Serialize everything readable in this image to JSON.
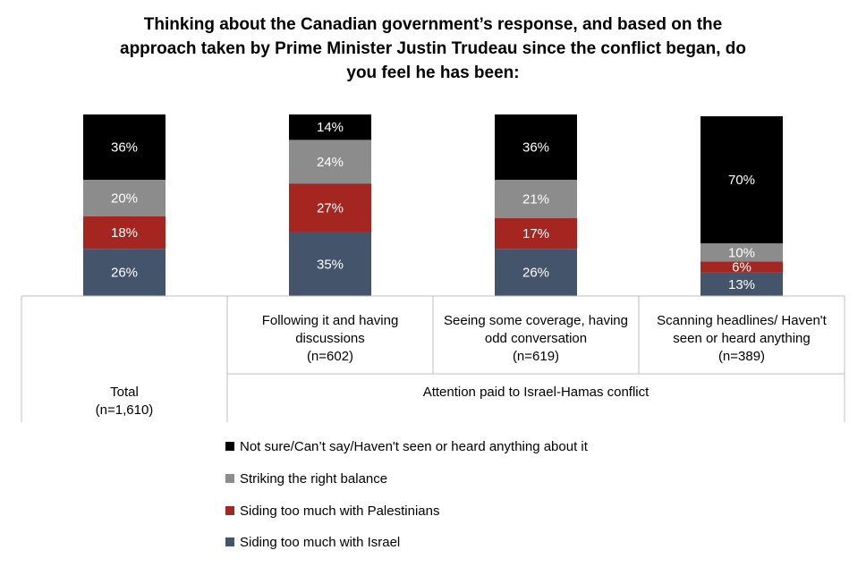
{
  "chart_data": {
    "type": "bar",
    "stacked": true,
    "percent": true,
    "title_lines": [
      "Thinking about the Canadian government’s response, and based on the",
      "approach taken by Prime Minister Justin Trudeau since the conflict began, do",
      "you feel he has been:"
    ],
    "categories": [
      {
        "lines": [
          "Total",
          "(n=1,610)"
        ]
      },
      {
        "lines": [
          "Following it and having",
          "discussions",
          "(n=602)"
        ]
      },
      {
        "lines": [
          "Seeing some coverage, having",
          "odd conversation",
          "(n=619)"
        ]
      },
      {
        "lines": [
          "Scanning headlines/ Haven't",
          "seen or heard anything",
          "(n=389)"
        ]
      }
    ],
    "group_label": "Attention paid to Israel-Hamas conflict",
    "series": [
      {
        "name": "Siding too much with Israel",
        "color": "#44546A",
        "values": [
          26,
          35,
          26,
          13
        ],
        "labels": [
          "26%",
          "35%",
          "26%",
          "13%"
        ]
      },
      {
        "name": "Siding too much with Palestinians",
        "color": "#A52521",
        "values": [
          18,
          27,
          17,
          6
        ],
        "labels": [
          "18%",
          "27%",
          "17%",
          "6%"
        ]
      },
      {
        "name": "Striking the right balance",
        "color": "#8C8C8C",
        "values": [
          20,
          24,
          21,
          10
        ],
        "labels": [
          "20%",
          "24%",
          "21%",
          "10%"
        ]
      },
      {
        "name": "Not sure/Can’t say/Haven't seen or heard anything about it",
        "color": "#000000",
        "values": [
          36,
          14,
          36,
          70
        ],
        "labels": [
          "36%",
          "14%",
          "36%",
          "70%"
        ]
      }
    ],
    "legend_order": [
      3,
      2,
      1,
      0
    ],
    "legend_position": "bottom",
    "ylim": [
      0,
      100
    ],
    "grid": false
  }
}
